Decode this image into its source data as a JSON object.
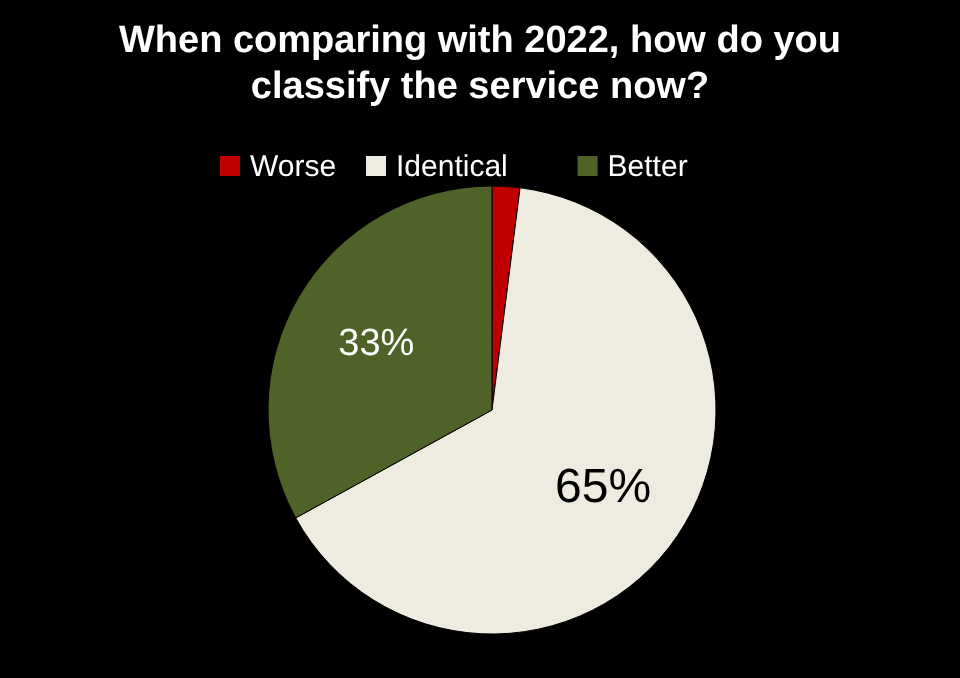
{
  "chart_data": {
    "type": "pie",
    "title": "When comparing with 2022, how do you classify the service now?",
    "categories": [
      "Worse",
      "Identical",
      "Better"
    ],
    "values": [
      2,
      65,
      33
    ],
    "colors": [
      "#c00000",
      "#eeece1",
      "#4f6228"
    ],
    "value_labels": [
      null,
      "65%",
      "33%"
    ],
    "legend": "top"
  }
}
